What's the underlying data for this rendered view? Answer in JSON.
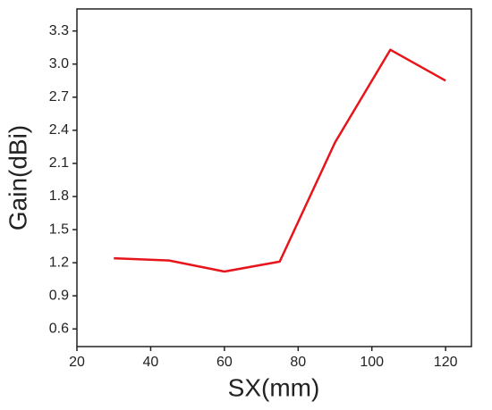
{
  "chart_data": {
    "type": "line",
    "x_label": "SX(mm)",
    "y_label": "Gain(dBi)",
    "x": [
      30,
      45,
      60,
      75,
      90,
      105,
      120
    ],
    "series": [
      {
        "color": "#e8141b",
        "values": [
          1.24,
          1.22,
          1.12,
          1.21,
          2.29,
          3.13,
          2.85
        ]
      }
    ],
    "xlim": [
      20,
      127
    ],
    "xticks": [
      20,
      40,
      60,
      80,
      100,
      120
    ],
    "ylim": [
      0.44,
      3.5
    ],
    "yticks": [
      0.6,
      0.9,
      1.2,
      1.5,
      1.8,
      2.1,
      2.4,
      2.7,
      {
        "value": 3,
        "label": "3.0"
      },
      3.3
    ]
  }
}
